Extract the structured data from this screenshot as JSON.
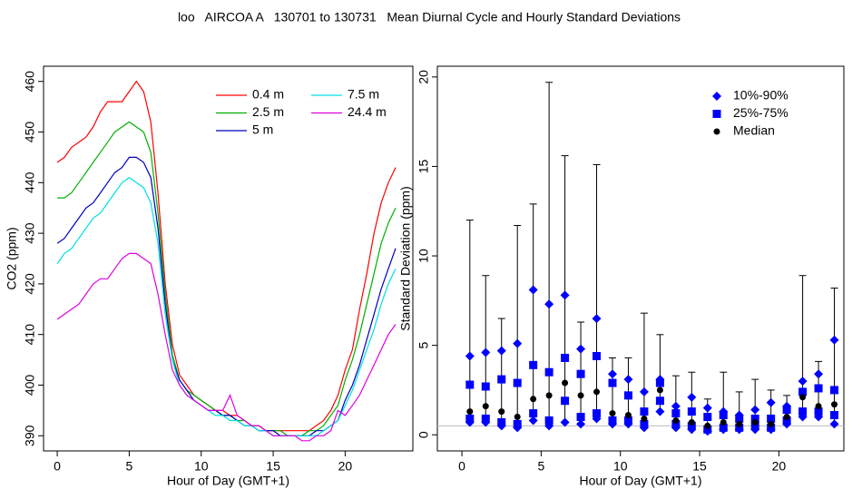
{
  "title": "loo   AIRCOA A   130701 to 130731   Mean Diurnal Cycle and Hourly Standard Deviations",
  "chart_data": [
    {
      "type": "line",
      "xlabel": "Hour of Day (GMT+1)",
      "ylabel": "CO2 (ppm)",
      "xlim": [
        -0.95,
        24.7
      ],
      "ylim": [
        387,
        463
      ],
      "xticks": [
        0,
        5,
        10,
        15,
        20
      ],
      "yticks": [
        390,
        400,
        410,
        420,
        430,
        440,
        450,
        460
      ],
      "x": [
        0,
        0.5,
        1,
        1.5,
        2,
        2.5,
        3,
        3.5,
        4,
        4.5,
        5,
        5.5,
        6,
        6.5,
        7,
        7.5,
        8,
        8.5,
        9,
        9.5,
        10,
        10.5,
        11,
        11.5,
        12,
        12.5,
        13,
        13.5,
        14,
        14.5,
        15,
        15.5,
        16,
        16.5,
        17,
        17.5,
        18,
        18.5,
        19,
        19.5,
        20,
        20.5,
        21,
        21.5,
        22,
        22.5,
        23,
        23.5
      ],
      "series": [
        {
          "name": "0.4 m",
          "color": "#ff0000",
          "values": [
            444,
            445,
            447,
            448,
            449,
            451,
            454,
            456,
            456,
            456,
            458,
            460,
            458,
            452,
            438,
            420,
            408,
            402,
            400,
            398,
            397,
            396,
            395,
            395,
            394,
            394,
            393,
            392,
            392,
            391,
            391,
            391,
            391,
            391,
            391,
            391,
            392,
            393,
            395,
            398,
            403,
            407,
            415,
            422,
            430,
            436,
            440,
            443
          ]
        },
        {
          "name": "2.5 m",
          "color": "#00b000",
          "values": [
            437,
            437,
            438,
            440,
            442,
            444,
            446,
            448,
            450,
            451,
            452,
            451,
            450,
            446,
            434,
            418,
            406,
            401,
            399,
            398,
            397,
            396,
            395,
            394,
            394,
            393,
            393,
            392,
            392,
            391,
            391,
            391,
            390,
            390,
            390,
            391,
            391,
            392,
            394,
            396,
            401,
            405,
            410,
            416,
            422,
            428,
            432,
            435
          ]
        },
        {
          "name": "5 m",
          "color": "#0000c0",
          "values": [
            428,
            429,
            431,
            433,
            435,
            436,
            438,
            440,
            442,
            443,
            445,
            445,
            444,
            441,
            431,
            416,
            405,
            401,
            399,
            397,
            396,
            395,
            395,
            394,
            394,
            393,
            392,
            392,
            391,
            391,
            391,
            390,
            390,
            390,
            390,
            390,
            391,
            391,
            392,
            393,
            397,
            400,
            404,
            409,
            414,
            419,
            423,
            427
          ]
        },
        {
          "name": "7.5 m",
          "color": "#00e0e0",
          "values": [
            424,
            426,
            427,
            429,
            431,
            433,
            434,
            436,
            438,
            440,
            441,
            440,
            439,
            436,
            428,
            414,
            405,
            400,
            398,
            397,
            396,
            395,
            394,
            394,
            393,
            393,
            392,
            392,
            391,
            391,
            390,
            390,
            390,
            390,
            390,
            390,
            390,
            391,
            392,
            393,
            396,
            399,
            403,
            407,
            411,
            416,
            420,
            423
          ]
        },
        {
          "name": "24.4 m",
          "color": "#e000e0",
          "values": [
            413,
            414,
            415,
            416,
            418,
            420,
            421,
            421,
            423,
            425,
            426,
            426,
            425,
            424,
            418,
            410,
            403,
            400,
            398,
            397,
            396,
            395,
            395,
            395,
            398,
            394,
            393,
            392,
            392,
            391,
            390,
            390,
            390,
            390,
            389,
            389,
            390,
            390,
            391,
            395,
            394,
            396,
            398,
            401,
            404,
            407,
            410,
            412
          ]
        }
      ]
    },
    {
      "type": "stats",
      "xlabel": "Hour of Day (GMT+1)",
      "ylabel": "Standard Deviation (ppm)",
      "xlim": [
        -1.55,
        24.1
      ],
      "ylim": [
        -0.9,
        20.6
      ],
      "xticks": [
        0,
        5,
        10,
        15,
        20
      ],
      "yticks": [
        0,
        5,
        10,
        15,
        20
      ],
      "hline": 0.5,
      "x": [
        0.5,
        1.5,
        2.5,
        3.5,
        4.5,
        5.5,
        6.5,
        7.5,
        8.5,
        9.5,
        10.5,
        11.5,
        12.5,
        13.5,
        14.5,
        15.5,
        16.5,
        17.5,
        18.5,
        19.5,
        20.5,
        21.5,
        22.5,
        23.5
      ],
      "max": [
        12,
        8.9,
        6.5,
        11.7,
        12.9,
        19.7,
        15.6,
        6.3,
        15.1,
        4.3,
        4.3,
        6.8,
        5.6,
        3.3,
        3.5,
        2,
        3.5,
        2.4,
        3.1,
        2.5,
        2.2,
        8.9,
        4.1,
        8.2
      ],
      "min": [
        0.5,
        0.5,
        0.4,
        0.3,
        0.6,
        0.4,
        0.5,
        0.5,
        0.7,
        0.5,
        0.5,
        0.3,
        1.1,
        0.3,
        0.2,
        0.1,
        0.2,
        0.2,
        0.2,
        0.2,
        0.5,
        0.8,
        0.8,
        0.5
      ],
      "series": [
        {
          "name": "10%-90%",
          "color": "#0000ff",
          "marker": "diamond",
          "low": [
            0.7,
            0.7,
            0.5,
            0.4,
            0.8,
            0.5,
            0.7,
            0.6,
            0.9,
            0.6,
            0.6,
            0.4,
            1.3,
            0.4,
            0.3,
            0.2,
            0.3,
            0.3,
            0.3,
            0.3,
            0.6,
            1,
            1,
            0.6
          ],
          "high": [
            4.4,
            4.6,
            4.7,
            5.1,
            8.1,
            7.3,
            7.8,
            4.8,
            6.5,
            3.4,
            3.1,
            2.4,
            3.1,
            1.6,
            2.1,
            1.5,
            1.3,
            1.1,
            1.4,
            1.8,
            1.6,
            3,
            3.4,
            5.3
          ]
        },
        {
          "name": "25%-75%",
          "color": "#0000ff",
          "marker": "square",
          "low": [
            0.9,
            0.9,
            0.7,
            0.6,
            1.2,
            0.8,
            1.9,
            1,
            1.2,
            0.8,
            0.8,
            0.6,
            1.9,
            0.6,
            0.5,
            0.3,
            0.4,
            0.4,
            0.5,
            0.4,
            0.8,
            1.3,
            1.3,
            1.1
          ],
          "high": [
            2.8,
            2.7,
            3.1,
            2.9,
            3.9,
            3.5,
            4.3,
            3.4,
            4.4,
            2.9,
            2.2,
            1.3,
            2.9,
            1.2,
            1.3,
            1,
            1.1,
            0.9,
            0.9,
            0.9,
            1.4,
            2.4,
            2.6,
            2.5
          ]
        },
        {
          "name": "Median",
          "color": "#000000",
          "marker": "circle",
          "values": [
            1.3,
            1.6,
            1.3,
            1,
            2,
            2.2,
            2.9,
            2.2,
            2.4,
            1.2,
            1.1,
            0.9,
            2.5,
            0.8,
            0.7,
            0.5,
            0.7,
            0.6,
            0.7,
            0.6,
            1,
            2.1,
            1.6,
            1.7
          ]
        }
      ]
    }
  ]
}
